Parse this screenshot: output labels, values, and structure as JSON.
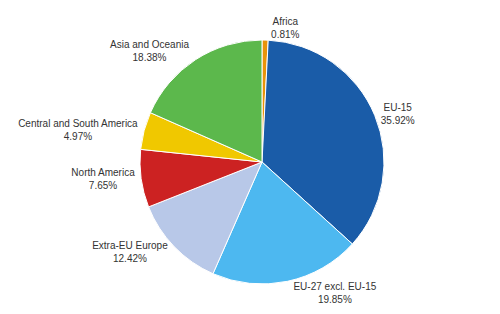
{
  "chart_data": {
    "type": "pie",
    "categories": [
      "Africa",
      "EU-15",
      "EU-27 excl. EU-15",
      "Extra-EU Europe",
      "North America",
      "Central and South America",
      "Asia and Oceania"
    ],
    "values": [
      0.81,
      35.92,
      19.85,
      12.42,
      7.65,
      4.97,
      18.38
    ],
    "value_labels": [
      "0.81%",
      "35.92%",
      "19.85%",
      "12.42%",
      "7.65%",
      "4.97%",
      "18.38%"
    ],
    "colors": [
      "#e8930a",
      "#1a5ca8",
      "#4db8f0",
      "#b8c8e8",
      "#cc2222",
      "#f0c800",
      "#5cb84c"
    ],
    "data_labels": true
  }
}
